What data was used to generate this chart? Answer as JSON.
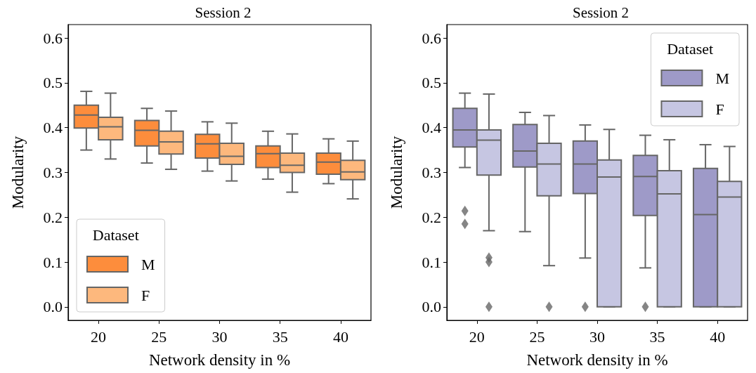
{
  "chart_data": [
    {
      "type": "box",
      "title": "Session 2",
      "xlabel": "Network density in %",
      "ylabel": "Modularity",
      "legend_title": "Dataset",
      "legend": "bottom left",
      "grid": false,
      "categories": [
        "20",
        "25",
        "30",
        "35",
        "40"
      ],
      "ylim": [
        -0.03,
        0.63
      ],
      "yticks": [
        {
          "value": 0,
          "label": "0.0"
        },
        0.1,
        0.2,
        0.3,
        0.4,
        0.5,
        0.6
      ],
      "series": [
        {
          "name": "M",
          "color": "#fd8d3c",
          "boxes": [
            {
              "low": 0.35,
              "q1": 0.399,
              "median": 0.428,
              "q3": 0.45,
              "high": 0.481
            },
            {
              "low": 0.321,
              "q1": 0.359,
              "median": 0.394,
              "q3": 0.416,
              "high": 0.443
            },
            {
              "low": 0.303,
              "q1": 0.332,
              "median": 0.364,
              "q3": 0.385,
              "high": 0.413
            },
            {
              "low": 0.285,
              "q1": 0.311,
              "median": 0.342,
              "q3": 0.359,
              "high": 0.392
            },
            {
              "low": 0.275,
              "q1": 0.296,
              "median": 0.323,
              "q3": 0.343,
              "high": 0.375
            }
          ]
        },
        {
          "name": "F",
          "color": "#fdb87d",
          "boxes": [
            {
              "low": 0.33,
              "q1": 0.373,
              "median": 0.402,
              "q3": 0.423,
              "high": 0.477
            },
            {
              "low": 0.307,
              "q1": 0.341,
              "median": 0.368,
              "q3": 0.392,
              "high": 0.437
            },
            {
              "low": 0.281,
              "q1": 0.318,
              "median": 0.336,
              "q3": 0.365,
              "high": 0.41
            },
            {
              "low": 0.256,
              "q1": 0.3,
              "median": 0.316,
              "q3": 0.343,
              "high": 0.386
            },
            {
              "low": 0.241,
              "q1": 0.284,
              "median": 0.301,
              "q3": 0.327,
              "high": 0.37
            }
          ]
        }
      ]
    },
    {
      "type": "box",
      "title": "Session 2",
      "xlabel": "Network density in %",
      "ylabel": "Modularity",
      "legend_title": "Dataset",
      "legend": "top right",
      "grid": false,
      "categories": [
        "20",
        "25",
        "30",
        "35",
        "40"
      ],
      "ylim": [
        -0.03,
        0.63
      ],
      "yticks": [
        {
          "value": 0,
          "label": "0.0"
        },
        0.1,
        0.2,
        0.3,
        0.4,
        0.5,
        0.6
      ],
      "series": [
        {
          "name": "M",
          "color": "#9e9ac8",
          "boxes": [
            {
              "low": 0.311,
              "q1": 0.357,
              "median": 0.395,
              "q3": 0.443,
              "high": 0.477,
              "outliers": [
                0.214,
                0.185
              ]
            },
            {
              "low": 0.168,
              "q1": 0.312,
              "median": 0.348,
              "q3": 0.407,
              "high": 0.434
            },
            {
              "low": 0.109,
              "q1": 0.253,
              "median": 0.319,
              "q3": 0.37,
              "high": 0.406,
              "outliers": [
                0
              ]
            },
            {
              "low": 0.087,
              "q1": 0.204,
              "median": 0.291,
              "q3": 0.338,
              "high": 0.383,
              "outliers": [
                0
              ]
            },
            {
              "low": 0,
              "q1": 0,
              "median": 0.206,
              "q3": 0.309,
              "high": 0.362
            }
          ]
        },
        {
          "name": "F",
          "color": "#c6c6e2",
          "boxes": [
            {
              "low": 0.17,
              "q1": 0.294,
              "median": 0.372,
              "q3": 0.395,
              "high": 0.475,
              "outliers": [
                0.11,
                0.1,
                0
              ]
            },
            {
              "low": 0.092,
              "q1": 0.248,
              "median": 0.319,
              "q3": 0.365,
              "high": 0.427,
              "outliers": [
                0
              ]
            },
            {
              "low": 0,
              "q1": 0,
              "median": 0.29,
              "q3": 0.328,
              "high": 0.396
            },
            {
              "low": 0,
              "q1": 0,
              "median": 0.252,
              "q3": 0.304,
              "high": 0.373
            },
            {
              "low": 0,
              "q1": 0,
              "median": 0.245,
              "q3": 0.28,
              "high": 0.358
            }
          ]
        }
      ]
    }
  ]
}
